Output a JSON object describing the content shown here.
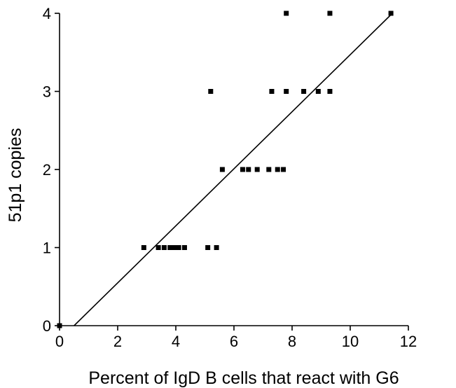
{
  "chart_data": {
    "type": "scatter",
    "title": "",
    "xlabel": "Percent of IgD B cells that react with G6",
    "ylabel": "51p1 copies",
    "xlim": [
      0,
      12
    ],
    "ylim": [
      0,
      4
    ],
    "x_ticks": [
      "0",
      "2",
      "4",
      "6",
      "8",
      "10",
      "12"
    ],
    "y_ticks": [
      "0",
      "1",
      "2",
      "3",
      "4"
    ],
    "grid": false,
    "legend": "none",
    "colors": {
      "points": "#000000",
      "line": "#000000",
      "axes": "#000000"
    },
    "series": [
      {
        "points": [
          {
            "x": 0.0,
            "y": 0
          },
          {
            "x": 2.9,
            "y": 1
          },
          {
            "x": 3.4,
            "y": 1
          },
          {
            "x": 3.6,
            "y": 1
          },
          {
            "x": 3.8,
            "y": 1
          },
          {
            "x": 3.95,
            "y": 1
          },
          {
            "x": 4.1,
            "y": 1
          },
          {
            "x": 4.3,
            "y": 1
          },
          {
            "x": 5.1,
            "y": 1
          },
          {
            "x": 5.4,
            "y": 1
          },
          {
            "x": 5.6,
            "y": 2
          },
          {
            "x": 6.3,
            "y": 2
          },
          {
            "x": 6.5,
            "y": 2
          },
          {
            "x": 6.8,
            "y": 2
          },
          {
            "x": 7.2,
            "y": 2
          },
          {
            "x": 7.5,
            "y": 2
          },
          {
            "x": 7.7,
            "y": 2
          },
          {
            "x": 5.2,
            "y": 3
          },
          {
            "x": 7.3,
            "y": 3
          },
          {
            "x": 7.8,
            "y": 3
          },
          {
            "x": 8.4,
            "y": 3
          },
          {
            "x": 8.9,
            "y": 3
          },
          {
            "x": 9.3,
            "y": 3
          },
          {
            "x": 7.8,
            "y": 4
          },
          {
            "x": 9.3,
            "y": 4
          },
          {
            "x": 11.4,
            "y": 4
          }
        ]
      }
    ],
    "trendline": {
      "x": [
        0.5,
        11.45
      ],
      "y": [
        0,
        4
      ]
    }
  }
}
